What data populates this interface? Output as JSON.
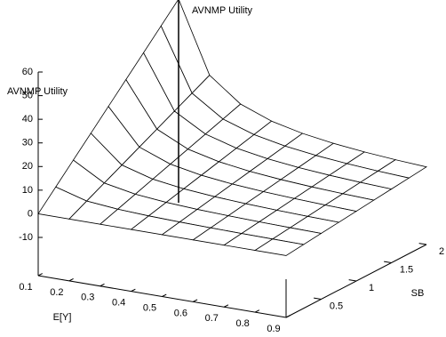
{
  "chart_data": {
    "type": "surface",
    "title": "AVNMP Utility",
    "xlabel": "E[Y]",
    "ylabel": "SB",
    "zlabel": "AVNMP Utility",
    "x": [
      0.1,
      0.2,
      0.3,
      0.4,
      0.5,
      0.6,
      0.7,
      0.8,
      0.9
    ],
    "y": [
      0,
      0.25,
      0.5,
      0.75,
      1,
      1.25,
      1.5,
      1.75,
      2
    ],
    "z": [
      [
        0,
        0,
        0,
        0,
        0,
        0,
        0,
        0,
        0
      ],
      [
        7.5,
        3.75,
        2.5,
        1.88,
        1.5,
        1.25,
        1.07,
        0.94,
        0.83
      ],
      [
        15,
        7.5,
        5,
        3.75,
        3,
        2.5,
        2.14,
        1.88,
        1.67
      ],
      [
        22.5,
        11.25,
        7.5,
        5.63,
        4.5,
        3.75,
        3.21,
        2.81,
        2.5
      ],
      [
        30,
        15,
        10,
        7.5,
        6,
        5,
        4.29,
        3.75,
        3.33
      ],
      [
        37.5,
        18.75,
        12.5,
        9.38,
        7.5,
        6.25,
        5.36,
        4.69,
        4.17
      ],
      [
        45,
        22.5,
        15,
        11.25,
        9,
        7.5,
        6.43,
        5.63,
        5
      ],
      [
        52.5,
        26.25,
        17.5,
        13.13,
        10.5,
        8.75,
        7.5,
        6.56,
        5.83
      ],
      [
        60,
        30,
        20,
        15,
        12,
        10,
        8.57,
        7.5,
        6.67
      ]
    ],
    "xlim": [
      0.1,
      0.9
    ],
    "xticks": [
      0.1,
      0.2,
      0.3,
      0.4,
      0.5,
      0.6,
      0.7,
      0.8,
      0.9
    ],
    "ylim": [
      0,
      2
    ],
    "yticks": [
      0.5,
      1,
      1.5,
      2
    ],
    "zlim": [
      -10,
      60
    ],
    "zticks": [
      -10,
      0,
      10,
      20,
      30,
      40,
      50,
      60
    ]
  }
}
